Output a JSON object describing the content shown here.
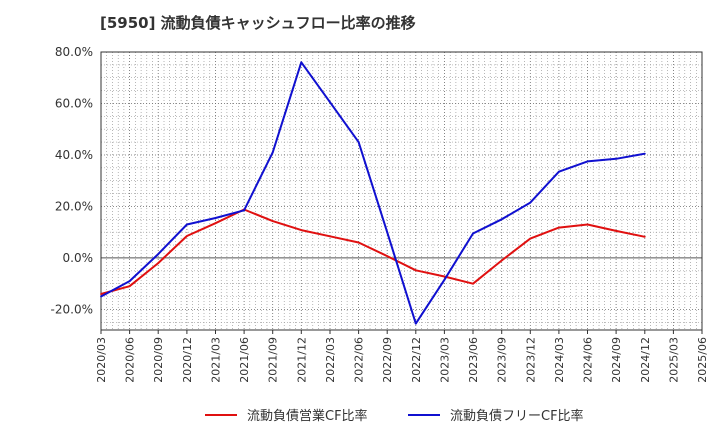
{
  "chart_data": {
    "type": "line",
    "title": "[5950]  流動負債キャッシュフロー比率の推移",
    "xlabel": "",
    "ylabel": "",
    "ylim": [
      -28,
      80
    ],
    "y_ticks": [
      "80.0%",
      "60.0%",
      "40.0%",
      "20.0%",
      "0.0%",
      "-20.0%"
    ],
    "y_tick_values": [
      80,
      60,
      40,
      20,
      0,
      -20
    ],
    "grid": true,
    "legend_position": "bottom",
    "x": [
      "2020/03",
      "2020/06",
      "2020/09",
      "2020/12",
      "2021/03",
      "2021/06",
      "2021/09",
      "2021/12",
      "2022/03",
      "2022/06",
      "2022/09",
      "2022/12",
      "2023/03",
      "2023/06",
      "2023/09",
      "2023/12",
      "2024/03",
      "2024/06",
      "2024/09",
      "2024/12",
      "2025/03",
      "2025/06"
    ],
    "series": [
      {
        "name": "流動負債営業CF比率",
        "color": "#e01010",
        "values": [
          -14,
          -11,
          -2,
          8.5,
          13.5,
          18.8,
          14.3,
          10.8,
          8.4,
          6,
          0.7,
          -4.8,
          -7.2,
          -10,
          -1,
          7.5,
          11.8,
          13,
          10.5,
          8.2,
          null,
          null
        ]
      },
      {
        "name": "流動負債フリーCF比率",
        "color": "#1010d0",
        "values": [
          -15,
          -9,
          1.5,
          13,
          15.5,
          18.5,
          41,
          76,
          60.5,
          45,
          10,
          -25.5,
          -8.5,
          9.5,
          15,
          21.5,
          33.5,
          37.5,
          38.5,
          40.5,
          null,
          null
        ]
      }
    ]
  }
}
